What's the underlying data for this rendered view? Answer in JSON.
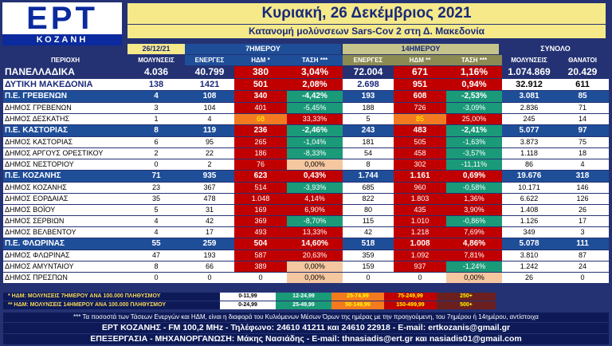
{
  "logo": {
    "main": "ΕΡΤ",
    "sub": "ΚΟΖΑΝΗ"
  },
  "header": {
    "title": "Κυριακή, 26 Δεκέμβριος 2021",
    "subtitle": "Κατανομή μολύνσεων Sars-Cov 2 στη Δ. Μακεδονία"
  },
  "group_headers": {
    "date": "26/12/21",
    "seven_day": "7ΗΜΕΡΟΥ",
    "fourteen_day": "14ΗΜΕΡΟΥ",
    "total": "ΣΥΝΟΛΟ"
  },
  "column_headers": [
    "ΠΕΡΙΟΧΗ",
    "ΜΟΛΥΝΣΕΙΣ",
    "ΕΝΕΡΓΕΣ",
    "ΗΔΜ *",
    "ΤΑΣΗ ***",
    "ΕΝΕΡΓΕΣ",
    "ΗΔΜ **",
    "ΤΑΣΗ ***",
    "ΜΟΛΥΝΣΕΙΣ",
    "ΘΑΝΑΤΟΙ"
  ],
  "rows": [
    {
      "type": "national",
      "cells": [
        "ΠΑΝΕΛΛΑΔΙΚΑ",
        "4.036",
        "40.799",
        "380",
        "3,04%",
        "72.004",
        "671",
        "1,16%",
        "1.074.869",
        "20.429"
      ],
      "c7": "#c00000",
      "t7": "#c00000",
      "c14": "#c00000",
      "t14": "#c00000"
    },
    {
      "type": "region",
      "cells": [
        "ΔΥΤΙΚΗ ΜΑΚΕΔΟΝΙΑ",
        "138",
        "1421",
        "501",
        "2,08%",
        "2.698",
        "951",
        "0,94%",
        "32.912",
        "611"
      ],
      "c7": "#c00000",
      "t7": "#c00000",
      "c14": "#c00000",
      "t14": "#c00000"
    },
    {
      "type": "unit",
      "cells": [
        "Π.Ε. ΓΡΕΒΕΝΩΝ",
        "4",
        "108",
        "340",
        "-4,42%",
        "193",
        "608",
        "-2,53%",
        "3.081",
        "85"
      ],
      "c7": "#c00000",
      "t7": "#1a9a78",
      "c14": "#c00000",
      "t14": "#1a9a78"
    },
    {
      "type": "muni",
      "cells": [
        "ΔΗΜΟΣ ΓΡΕΒΕΝΩΝ",
        "3",
        "104",
        "401",
        "-5,45%",
        "188",
        "726",
        "-3,09%",
        "2.836",
        "71"
      ],
      "c7": "#c00000",
      "t7": "#1a9a78",
      "c14": "#c00000",
      "t14": "#1a9a78"
    },
    {
      "type": "muni",
      "cells": [
        "ΔΗΜΟΣ ΔΕΣΚΑΤΗΣ",
        "1",
        "4",
        "68",
        "33,33%",
        "5",
        "85",
        "25,00%",
        "245",
        "14"
      ],
      "c7": "#f47a20",
      "t7": "#c00000",
      "c14": "#f47a20",
      "t14": "#c00000"
    },
    {
      "type": "unit",
      "cells": [
        "Π.Ε. ΚΑΣΤΟΡΙΑΣ",
        "8",
        "119",
        "236",
        "-2,46%",
        "243",
        "483",
        "-2,41%",
        "5.077",
        "97"
      ],
      "c7": "#c00000",
      "t7": "#1a9a78",
      "c14": "#c00000",
      "t14": "#1a9a78"
    },
    {
      "type": "muni",
      "cells": [
        "ΔΗΜΟΣ ΚΑΣΤΟΡΙΑΣ",
        "6",
        "95",
        "265",
        "-1,04%",
        "181",
        "505",
        "-1,63%",
        "3.873",
        "75"
      ],
      "c7": "#c00000",
      "t7": "#1a9a78",
      "c14": "#c00000",
      "t14": "#1a9a78"
    },
    {
      "type": "muni",
      "cells": [
        "ΔΗΜΟΣ ΑΡΓΟΥΣ ΟΡΕΣΤΙΚΟΥ",
        "2",
        "22",
        "186",
        "-8,33%",
        "54",
        "458",
        "-3,57%",
        "1.118",
        "18"
      ],
      "c7": "#c00000",
      "t7": "#1a9a78",
      "c14": "#c00000",
      "t14": "#1a9a78"
    },
    {
      "type": "muni",
      "cells": [
        "ΔΗΜΟΣ ΝΕΣΤΟΡΙΟΥ",
        "0",
        "2",
        "76",
        "0,00%",
        "8",
        "302",
        "-11,11%",
        "86",
        "4"
      ],
      "c7": "#c00000",
      "t7": "#f5c7a0",
      "c14": "#c00000",
      "t14": "#1a9a78"
    },
    {
      "type": "unit",
      "cells": [
        "Π.Ε. ΚΟΖΑΝΗΣ",
        "71",
        "935",
        "623",
        "0,43%",
        "1.744",
        "1.161",
        "0,69%",
        "19.676",
        "318"
      ],
      "c7": "#c00000",
      "t7": "#c00000",
      "c14": "#c00000",
      "t14": "#c00000"
    },
    {
      "type": "muni",
      "cells": [
        "ΔΗΜΟΣ ΚΟΖΑΝΗΣ",
        "23",
        "367",
        "514",
        "-3,93%",
        "685",
        "960",
        "-0,58%",
        "10.171",
        "146"
      ],
      "c7": "#c00000",
      "t7": "#1a9a78",
      "c14": "#c00000",
      "t14": "#1a9a78"
    },
    {
      "type": "muni",
      "cells": [
        "ΔΗΜΟΣ ΕΟΡΔΑΙΑΣ",
        "35",
        "478",
        "1.048",
        "4,14%",
        "822",
        "1.803",
        "1,36%",
        "6.622",
        "126"
      ],
      "c7": "#c00000",
      "t7": "#c00000",
      "c14": "#c00000",
      "t14": "#c00000"
    },
    {
      "type": "muni",
      "cells": [
        "ΔΗΜΟΣ ΒΟΪΟΥ",
        "5",
        "31",
        "169",
        "6,90%",
        "80",
        "435",
        "3,90%",
        "1.408",
        "26"
      ],
      "c7": "#c00000",
      "t7": "#c00000",
      "c14": "#c00000",
      "t14": "#c00000"
    },
    {
      "type": "muni",
      "cells": [
        "ΔΗΜΟΣ ΣΕΡΒΙΩΝ",
        "4",
        "42",
        "369",
        "-8,70%",
        "115",
        "1.010",
        "-0,86%",
        "1.126",
        "17"
      ],
      "c7": "#c00000",
      "t7": "#1a9a78",
      "c14": "#c00000",
      "t14": "#1a9a78"
    },
    {
      "type": "muni",
      "cells": [
        "ΔΗΜΟΣ ΒΕΛΒΕΝΤΟΥ",
        "4",
        "17",
        "493",
        "13,33%",
        "42",
        "1.218",
        "7,69%",
        "349",
        "3"
      ],
      "c7": "#c00000",
      "t7": "#c00000",
      "c14": "#c00000",
      "t14": "#c00000"
    },
    {
      "type": "unit",
      "cells": [
        "Π.Ε. ΦΛΩΡΙΝΑΣ",
        "55",
        "259",
        "504",
        "14,60%",
        "518",
        "1.008",
        "4,86%",
        "5.078",
        "111"
      ],
      "c7": "#c00000",
      "t7": "#c00000",
      "c14": "#c00000",
      "t14": "#c00000"
    },
    {
      "type": "muni",
      "cells": [
        "ΔΗΜΟΣ ΦΛΩΡΙΝΑΣ",
        "47",
        "193",
        "587",
        "20,63%",
        "359",
        "1.092",
        "7,81%",
        "3.810",
        "87"
      ],
      "c7": "#c00000",
      "t7": "#c00000",
      "c14": "#c00000",
      "t14": "#c00000"
    },
    {
      "type": "muni",
      "cells": [
        "ΔΗΜΟΣ ΑΜΥΝΤΑΙΟΥ",
        "8",
        "66",
        "389",
        "0,00%",
        "159",
        "937",
        "-1,24%",
        "1.242",
        "24"
      ],
      "c7": "#c00000",
      "t7": "#f5c7a0",
      "c14": "#c00000",
      "t14": "#1a9a78"
    },
    {
      "type": "muni",
      "cells": [
        "ΔΗΜΟΣ ΠΡΕΣΠΩΝ",
        "0",
        "0",
        "0",
        "0,00%",
        "0",
        "0",
        "0,00%",
        "26",
        "0"
      ],
      "c7": "#ffffff",
      "t7": "#f5c7a0",
      "c14": "#ffffff",
      "t14": "#f5c7a0"
    }
  ],
  "legend": {
    "row1": {
      "label": "* ΗΔΜ: ΜΟΛΥΝΣΕΙΣ 7ΗΜΕΡΟΥ ΑΝΑ 100.000 ΠΛΗΘΥΣΜΟΥ",
      "ranges": [
        "0-11,99",
        "12-24,99",
        "25-74,99",
        "75-249,99",
        "250+"
      ]
    },
    "row2": {
      "label": "** ΗΔΜ: ΜΟΛΥΝΣΕΙΣ 14ΗΜΕΡΟΥ ΑΝΑ 100.000 ΠΛΗΘΥΣΜΟΥ",
      "ranges": [
        "0-24,99",
        "25-49,99",
        "50-149,99",
        "150-499,99",
        "500+"
      ]
    },
    "colors": [
      "#ffffff",
      "#1a9a78",
      "#f47a20",
      "#c00000",
      "#6b1f1f"
    ],
    "text_colors": [
      "#000000",
      "#ffffff",
      "#ffff00",
      "#ffff00",
      "#ffff00"
    ]
  },
  "note": "*** Τα ποσοστά των Τάσεων Ενεργών και ΗΔΜ, είναι η διαφορά του Κυλιόμενων Μέσων Όρων της ημέρας με την προηγούμενη, του 7ημέρου ή 14ημέρου, αντίστοιχα",
  "footer": {
    "line1": "ΕΡΤ ΚΟΖΑΝΗΣ - FM 100,2 MHz - Τηλέφωνο:  24610 41211 και 24610 22918 - E-mail: ertkozanis@gmail.gr",
    "line2": "ΕΠΕΞΕΡΓΑΣΙΑ  -  ΜΗΧΑΝΟΡΓΑΝΩΣΗ: Μάκης Νασιάδης  -  E-mail: thnasiadis@ert.gr και nasiadis01@gmail.com"
  }
}
